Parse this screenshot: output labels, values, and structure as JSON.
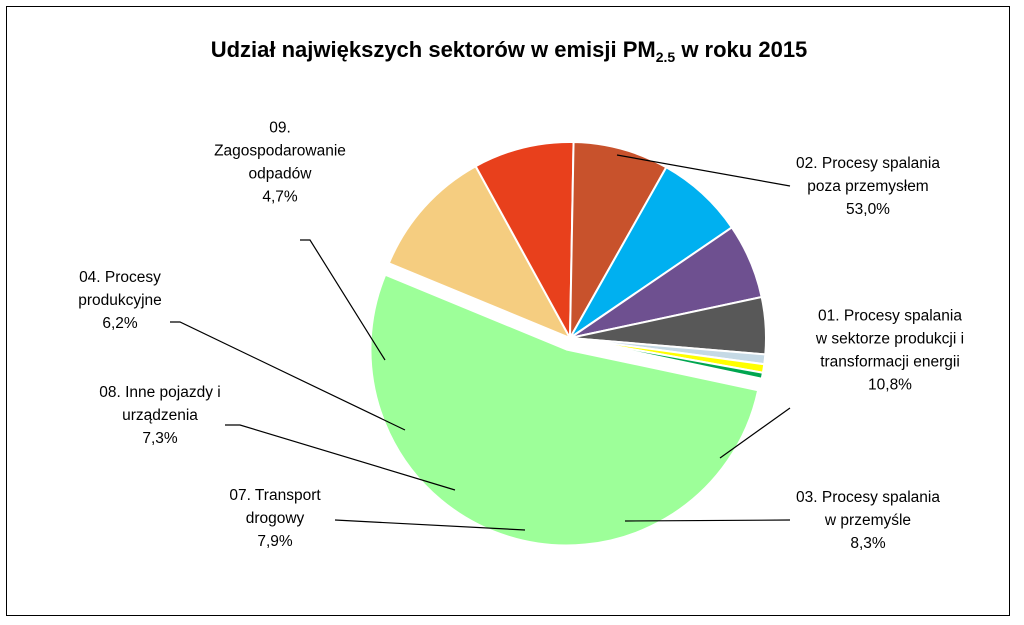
{
  "chart_data": {
    "type": "pie",
    "title_main": "Udział największych sektorów w emisji PM",
    "title_sub": "2.5",
    "title_tail": " w roku 2015",
    "slices": [
      {
        "name": "02. Procesy spalania poza przemysłem",
        "value": 53.0,
        "label_lines": [
          "02. Procesy spalania",
          "poza przemysłem",
          "53,0%"
        ],
        "color": "#9dff99",
        "explode": true
      },
      {
        "name": "01. Procesy spalania w sektorze produkcji i transformacji energii",
        "value": 10.8,
        "label_lines": [
          "01. Procesy spalania",
          "w sektorze produkcji i",
          "transformacji energii",
          "10,8%"
        ],
        "color": "#f5cd80"
      },
      {
        "name": "03. Procesy spalania w przemyśle",
        "value": 8.3,
        "label_lines": [
          "03. Procesy spalania",
          "w przemyśle",
          "8,3%"
        ],
        "color": "#e8401c"
      },
      {
        "name": "07. Transport drogowy",
        "value": 7.9,
        "label_lines": [
          "07. Transport",
          "drogowy",
          "7,9%"
        ],
        "color": "#c8522c"
      },
      {
        "name": "08. Inne pojazdy i urządzenia",
        "value": 7.3,
        "label_lines": [
          "08. Inne pojazdy i",
          "urządzenia",
          "7,3%"
        ],
        "color": "#00b0f0"
      },
      {
        "name": "04. Procesy produkcyjne",
        "value": 6.2,
        "label_lines": [
          "04. Procesy",
          "produkcyjne",
          "6,2%"
        ],
        "color": "#6e5090"
      },
      {
        "name": "09. Zagospodarowanie odpadów",
        "value": 4.7,
        "label_lines": [
          "09.",
          "Zagospodarowanie",
          "odpadów",
          "4,7%"
        ],
        "color": "#585858"
      },
      {
        "name": "",
        "value": 0.8,
        "color": "#c5d9e5"
      },
      {
        "name": "",
        "value": 0.7,
        "color": "#ffff00"
      },
      {
        "name": "",
        "value": 0.5,
        "color": "#00a650"
      }
    ]
  }
}
